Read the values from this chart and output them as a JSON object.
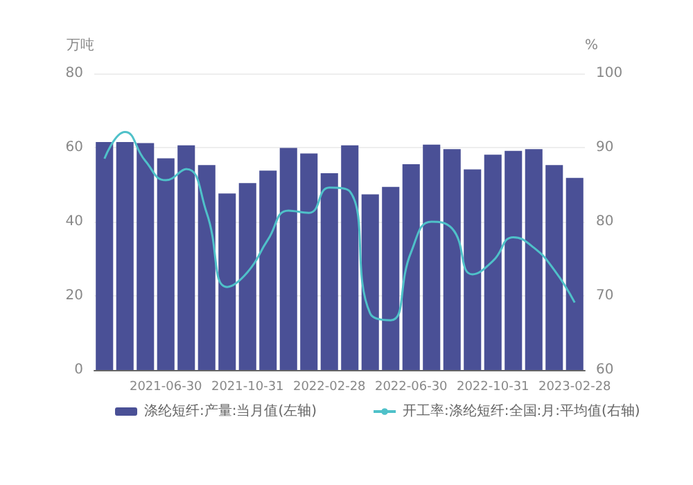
{
  "chart_data": {
    "type": "bar",
    "ylabel": "万吨",
    "y2label": "%",
    "categories": [
      null,
      null,
      null,
      "2021-06-30",
      null,
      null,
      null,
      "2021-10-31",
      null,
      null,
      null,
      "2022-02-28",
      null,
      null,
      null,
      "2022-06-30",
      null,
      null,
      null,
      "2022-10-31",
      null,
      null,
      null,
      "2023-02-28"
    ],
    "series": [
      {
        "name": "涤纶短纤:产量:当月值(左轴)",
        "color": "#4a5096",
        "values": [
          61.5,
          61.5,
          61.2,
          57.1,
          60.6,
          55.3,
          47.6,
          50.4,
          53.8,
          59.9,
          58.4,
          53.1,
          60.6,
          47.4,
          49.4,
          55.5,
          60.8,
          59.6,
          54.1,
          58.1,
          59.1,
          59.6,
          55.3,
          51.8
        ]
      },
      {
        "name": "开工率:涤纶短纤:全国:月:平均值(右轴)",
        "type": "line",
        "axis": "y2",
        "color": "#4fc1c9",
        "marker": "none",
        "values": [
          88.5,
          92.1,
          88.2,
          85.6,
          87.1,
          81.2,
          71.2,
          73.2,
          77.6,
          81.5,
          81.2,
          84.6,
          84.1,
          67.6,
          66.7,
          75.9,
          80,
          79.1,
          72.9,
          74.7,
          77.9,
          76.5,
          73.5,
          69.1
        ]
      }
    ],
    "ylim": [
      0,
      80
    ],
    "yticks": [
      0,
      20,
      40,
      60,
      80
    ],
    "y2lim": [
      60,
      100
    ],
    "y2ticks": [
      60,
      70,
      80,
      90,
      100
    ],
    "grid": "y",
    "legend": "bottom"
  }
}
